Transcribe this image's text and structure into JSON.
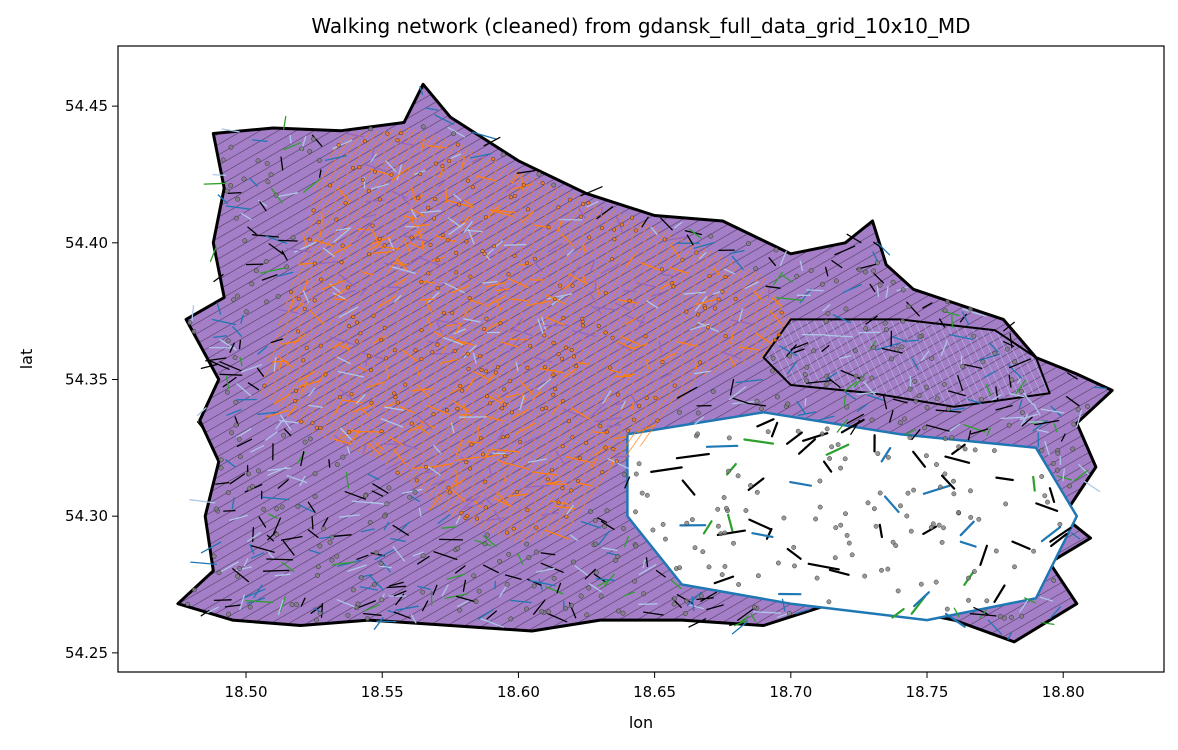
{
  "chart_data": {
    "type": "scatter",
    "title": "Walking network (cleaned) from gdansk_full_data_grid_10x10_MD",
    "xlabel": "lon",
    "ylabel": "lat",
    "xlim": [
      18.453,
      18.837
    ],
    "ylim": [
      54.243,
      54.472
    ],
    "x_ticks": [
      18.5,
      18.55,
      18.6,
      18.65,
      18.7,
      18.75,
      18.8
    ],
    "x_tick_labels": [
      "18.50",
      "18.55",
      "18.60",
      "18.65",
      "18.70",
      "18.75",
      "18.80"
    ],
    "y_ticks": [
      54.25,
      54.3,
      54.35,
      54.4,
      54.45
    ],
    "y_tick_labels": [
      "54.25",
      "54.30",
      "54.35",
      "54.40",
      "54.45"
    ],
    "grid": false,
    "legend": "none",
    "colors": {
      "edge_primary": "#000000",
      "edge_secondary": "#1f77b4",
      "edge_light": "#aec7e8",
      "edge_residential": "#9467bd",
      "edge_footway": "#ff7f0e",
      "edge_cycleway": "#2ca02c",
      "node": "#7f7f7f",
      "node_outline": "#1f1f1f"
    },
    "network_outline": [
      [
        18.488,
        54.44
      ],
      [
        18.51,
        54.442
      ],
      [
        18.535,
        54.441
      ],
      [
        18.558,
        54.444
      ],
      [
        18.565,
        54.458
      ],
      [
        18.575,
        54.446
      ],
      [
        18.6,
        54.43
      ],
      [
        18.625,
        54.418
      ],
      [
        18.65,
        54.41
      ],
      [
        18.675,
        54.408
      ],
      [
        18.7,
        54.396
      ],
      [
        18.72,
        54.4
      ],
      [
        18.73,
        54.408
      ],
      [
        18.735,
        54.392
      ],
      [
        18.745,
        54.383
      ],
      [
        18.76,
        54.378
      ],
      [
        18.778,
        54.372
      ],
      [
        18.79,
        54.358
      ],
      [
        18.805,
        54.352
      ],
      [
        18.818,
        54.346
      ],
      [
        18.805,
        54.334
      ],
      [
        18.812,
        54.318
      ],
      [
        18.8,
        54.3
      ],
      [
        18.81,
        54.292
      ],
      [
        18.795,
        54.283
      ],
      [
        18.805,
        54.268
      ],
      [
        18.782,
        54.254
      ],
      [
        18.76,
        54.262
      ],
      [
        18.74,
        54.266
      ],
      [
        18.715,
        54.268
      ],
      [
        18.69,
        54.26
      ],
      [
        18.66,
        54.262
      ],
      [
        18.63,
        54.262
      ],
      [
        18.605,
        54.258
      ],
      [
        18.575,
        54.26
      ],
      [
        18.545,
        54.262
      ],
      [
        18.52,
        54.26
      ],
      [
        18.495,
        54.262
      ],
      [
        18.475,
        54.268
      ],
      [
        18.488,
        54.28
      ],
      [
        18.485,
        54.3
      ],
      [
        18.49,
        54.32
      ],
      [
        18.483,
        54.335
      ],
      [
        18.49,
        54.35
      ],
      [
        18.478,
        54.372
      ],
      [
        18.492,
        54.38
      ],
      [
        18.488,
        54.4
      ],
      [
        18.492,
        54.42
      ]
    ],
    "dense_core": [
      [
        18.535,
        54.44
      ],
      [
        18.56,
        54.442
      ],
      [
        18.575,
        54.438
      ],
      [
        18.61,
        54.422
      ],
      [
        18.64,
        54.41
      ],
      [
        18.665,
        54.4
      ],
      [
        18.69,
        54.388
      ],
      [
        18.7,
        54.372
      ],
      [
        18.69,
        54.358
      ],
      [
        18.665,
        54.35
      ],
      [
        18.65,
        54.33
      ],
      [
        18.632,
        54.315
      ],
      [
        18.62,
        54.295
      ],
      [
        18.6,
        54.29
      ],
      [
        18.575,
        54.3
      ],
      [
        18.55,
        54.32
      ],
      [
        18.525,
        54.33
      ],
      [
        18.505,
        54.345
      ],
      [
        18.51,
        54.365
      ],
      [
        18.52,
        54.395
      ],
      [
        18.525,
        54.42
      ]
    ],
    "sparse_region": [
      [
        18.64,
        54.33
      ],
      [
        18.69,
        54.338
      ],
      [
        18.74,
        54.33
      ],
      [
        18.79,
        54.325
      ],
      [
        18.805,
        54.3
      ],
      [
        18.79,
        54.27
      ],
      [
        18.75,
        54.262
      ],
      [
        18.7,
        54.268
      ],
      [
        18.66,
        54.275
      ],
      [
        18.64,
        54.3
      ]
    ],
    "east_extension": [
      [
        18.7,
        54.372
      ],
      [
        18.74,
        54.372
      ],
      [
        18.775,
        54.368
      ],
      [
        18.79,
        54.358
      ],
      [
        18.795,
        54.345
      ],
      [
        18.76,
        54.34
      ],
      [
        18.73,
        54.345
      ],
      [
        18.7,
        54.348
      ],
      [
        18.69,
        54.358
      ]
    ]
  }
}
